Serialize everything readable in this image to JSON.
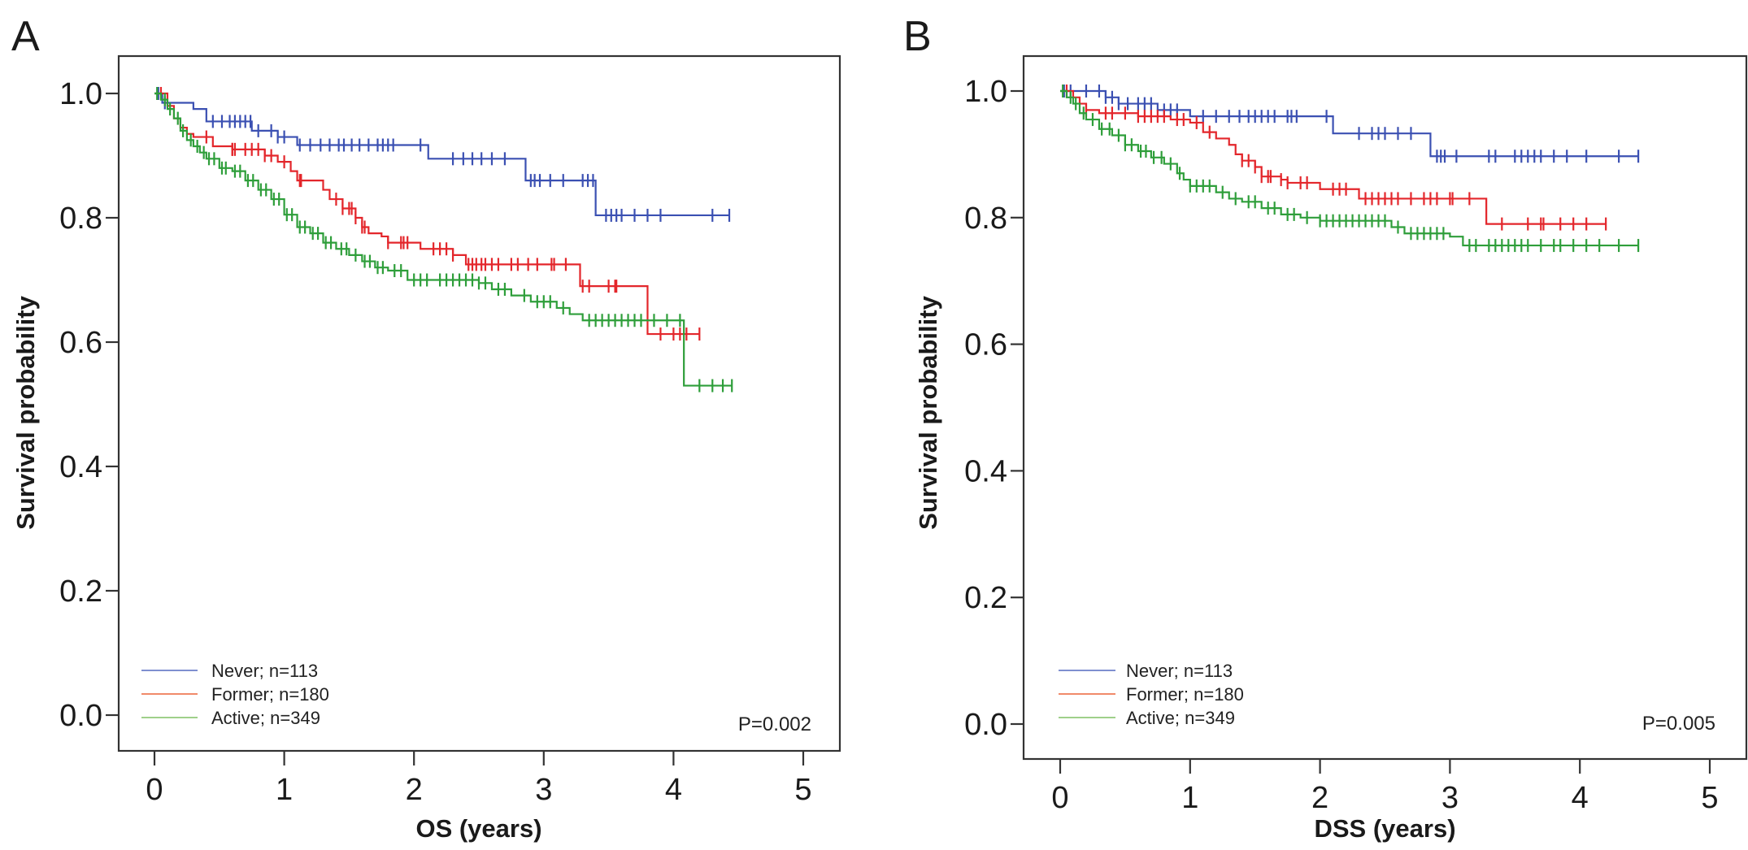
{
  "chart_data": [
    {
      "panel_label": "A",
      "type": "line",
      "subtype": "kaplan-meier",
      "xlabel": "OS (years)",
      "ylabel": "Survival probability",
      "xlim": [
        0,
        5
      ],
      "ylim": [
        0,
        1
      ],
      "xticks": [
        "0",
        "1",
        "2",
        "3",
        "4",
        "5"
      ],
      "yticks": [
        "0.0",
        "0.2",
        "0.4",
        "0.6",
        "0.8",
        "1.0"
      ],
      "p_value": "P=0.002",
      "legend_position": "bottom-left",
      "series": [
        {
          "name": "Never; n=113",
          "color": "#3b50b2",
          "legend_color": "#7f8fd0",
          "steps": [
            [
              0,
              1.0
            ],
            [
              0.06,
              0.985
            ],
            [
              0.3,
              0.975
            ],
            [
              0.4,
              0.955
            ],
            [
              0.75,
              0.94
            ],
            [
              0.95,
              0.93
            ],
            [
              1.1,
              0.917
            ],
            [
              2.11,
              0.895
            ],
            [
              2.86,
              0.86
            ],
            [
              3.4,
              0.804
            ]
          ],
          "end": 4.43,
          "censored": [
            0.03,
            0.08,
            0.45,
            0.52,
            0.58,
            0.62,
            0.66,
            0.7,
            0.74,
            0.8,
            0.9,
            0.95,
            1.0,
            1.12,
            1.2,
            1.28,
            1.35,
            1.42,
            1.46,
            1.52,
            1.58,
            1.65,
            1.72,
            1.76,
            1.8,
            1.84,
            2.05,
            2.3,
            2.38,
            2.45,
            2.52,
            2.6,
            2.7,
            2.9,
            2.93,
            2.97,
            3.05,
            3.15,
            3.3,
            3.34,
            3.38,
            3.48,
            3.52,
            3.56,
            3.6,
            3.7,
            3.8,
            3.9,
            4.3,
            4.43
          ]
        },
        {
          "name": "Former; n=180",
          "color": "#e3262b",
          "legend_color": "#f08a6a",
          "steps": [
            [
              0,
              1.0
            ],
            [
              0.1,
              0.98
            ],
            [
              0.15,
              0.96
            ],
            [
              0.2,
              0.945
            ],
            [
              0.25,
              0.935
            ],
            [
              0.3,
              0.93
            ],
            [
              0.45,
              0.915
            ],
            [
              0.6,
              0.91
            ],
            [
              0.85,
              0.9
            ],
            [
              0.95,
              0.89
            ],
            [
              1.05,
              0.875
            ],
            [
              1.1,
              0.86
            ],
            [
              1.3,
              0.845
            ],
            [
              1.35,
              0.83
            ],
            [
              1.45,
              0.815
            ],
            [
              1.55,
              0.8
            ],
            [
              1.6,
              0.785
            ],
            [
              1.65,
              0.775
            ],
            [
              1.75,
              0.77
            ],
            [
              1.8,
              0.76
            ],
            [
              2.05,
              0.75
            ],
            [
              2.3,
              0.74
            ],
            [
              2.4,
              0.725
            ],
            [
              3.28,
              0.69
            ],
            [
              3.8,
              0.613
            ]
          ],
          "end": 4.2,
          "censored": [
            0.05,
            0.4,
            0.6,
            0.6,
            0.62,
            0.7,
            0.75,
            0.8,
            0.85,
            0.9,
            1.0,
            1.12,
            1.13,
            1.4,
            1.45,
            1.5,
            1.52,
            1.55,
            1.6,
            1.62,
            1.8,
            1.9,
            1.92,
            1.95,
            2.15,
            2.2,
            2.25,
            2.3,
            2.42,
            2.45,
            2.48,
            2.52,
            2.55,
            2.6,
            2.65,
            2.75,
            2.8,
            2.88,
            2.95,
            3.06,
            3.08,
            3.17,
            3.3,
            3.35,
            3.5,
            3.55,
            3.56,
            3.9,
            4.0,
            4.05,
            4.1,
            4.2
          ]
        },
        {
          "name": "Active; n=349",
          "color": "#2e9e3a",
          "legend_color": "#9fd08a",
          "steps": [
            [
              0,
              1.0
            ],
            [
              0.05,
              0.99
            ],
            [
              0.1,
              0.975
            ],
            [
              0.15,
              0.96
            ],
            [
              0.2,
              0.94
            ],
            [
              0.25,
              0.925
            ],
            [
              0.3,
              0.915
            ],
            [
              0.35,
              0.905
            ],
            [
              0.4,
              0.895
            ],
            [
              0.5,
              0.88
            ],
            [
              0.6,
              0.875
            ],
            [
              0.7,
              0.86
            ],
            [
              0.8,
              0.845
            ],
            [
              0.9,
              0.83
            ],
            [
              1.0,
              0.805
            ],
            [
              1.1,
              0.785
            ],
            [
              1.2,
              0.775
            ],
            [
              1.3,
              0.76
            ],
            [
              1.4,
              0.75
            ],
            [
              1.5,
              0.74
            ],
            [
              1.6,
              0.73
            ],
            [
              1.7,
              0.72
            ],
            [
              1.8,
              0.715
            ],
            [
              1.95,
              0.7
            ],
            [
              2.5,
              0.695
            ],
            [
              2.6,
              0.685
            ],
            [
              2.75,
              0.675
            ],
            [
              2.9,
              0.665
            ],
            [
              3.1,
              0.655
            ],
            [
              3.2,
              0.645
            ],
            [
              3.3,
              0.635
            ],
            [
              4.08,
              0.53
            ]
          ],
          "end": 4.45,
          "censored": [
            0.02,
            0.08,
            0.12,
            0.18,
            0.22,
            0.28,
            0.33,
            0.38,
            0.42,
            0.46,
            0.52,
            0.55,
            0.62,
            0.66,
            0.72,
            0.76,
            0.82,
            0.86,
            0.92,
            0.96,
            1.02,
            1.06,
            1.12,
            1.16,
            1.22,
            1.26,
            1.32,
            1.36,
            1.44,
            1.48,
            1.55,
            1.62,
            1.66,
            1.72,
            1.76,
            1.85,
            1.9,
            2.0,
            2.05,
            2.1,
            2.2,
            2.25,
            2.3,
            2.35,
            2.4,
            2.45,
            2.5,
            2.55,
            2.65,
            2.7,
            2.85,
            2.95,
            3.0,
            3.05,
            3.15,
            3.35,
            3.4,
            3.45,
            3.5,
            3.55,
            3.6,
            3.65,
            3.7,
            3.75,
            3.85,
            3.95,
            4.05,
            4.2,
            4.3,
            4.38,
            4.45
          ]
        }
      ]
    },
    {
      "panel_label": "B",
      "type": "line",
      "subtype": "kaplan-meier",
      "xlabel": "DSS (years)",
      "ylabel": "Survival probability",
      "xlim": [
        0,
        5
      ],
      "ylim": [
        0,
        1
      ],
      "xticks": [
        "0",
        "1",
        "2",
        "3",
        "4",
        "5"
      ],
      "yticks": [
        "0.0",
        "0.2",
        "0.4",
        "0.6",
        "0.8",
        "1.0"
      ],
      "p_value": "P=0.005",
      "legend_position": "bottom-left",
      "series": [
        {
          "name": "Never; n=113",
          "color": "#3b50b2",
          "legend_color": "#7f8fd0",
          "steps": [
            [
              0,
              1.0
            ],
            [
              0.35,
              0.99
            ],
            [
              0.45,
              0.98
            ],
            [
              0.75,
              0.97
            ],
            [
              1.0,
              0.96
            ],
            [
              2.1,
              0.933
            ],
            [
              2.85,
              0.897
            ]
          ],
          "end": 4.45,
          "censored": [
            0.03,
            0.08,
            0.2,
            0.3,
            0.35,
            0.4,
            0.45,
            0.52,
            0.6,
            0.65,
            0.7,
            0.8,
            0.85,
            0.9,
            1.1,
            1.2,
            1.3,
            1.38,
            1.45,
            1.5,
            1.55,
            1.6,
            1.65,
            1.75,
            1.78,
            1.82,
            2.05,
            2.3,
            2.4,
            2.45,
            2.5,
            2.6,
            2.7,
            2.9,
            2.93,
            2.96,
            3.05,
            3.3,
            3.35,
            3.5,
            3.55,
            3.6,
            3.65,
            3.7,
            3.8,
            3.9,
            4.05,
            4.3,
            4.45
          ]
        },
        {
          "name": "Former; n=180",
          "color": "#e3262b",
          "legend_color": "#f08a6a",
          "steps": [
            [
              0,
              1.0
            ],
            [
              0.1,
              0.99
            ],
            [
              0.15,
              0.98
            ],
            [
              0.2,
              0.97
            ],
            [
              0.3,
              0.965
            ],
            [
              0.6,
              0.96
            ],
            [
              0.85,
              0.955
            ],
            [
              1.0,
              0.95
            ],
            [
              1.1,
              0.935
            ],
            [
              1.2,
              0.925
            ],
            [
              1.3,
              0.915
            ],
            [
              1.35,
              0.9
            ],
            [
              1.4,
              0.89
            ],
            [
              1.5,
              0.88
            ],
            [
              1.55,
              0.865
            ],
            [
              1.7,
              0.86
            ],
            [
              1.75,
              0.855
            ],
            [
              2.0,
              0.845
            ],
            [
              2.3,
              0.83
            ],
            [
              3.28,
              0.79
            ]
          ],
          "end": 4.2,
          "censored": [
            0.05,
            0.2,
            0.35,
            0.4,
            0.5,
            0.6,
            0.65,
            0.7,
            0.75,
            0.8,
            0.9,
            0.95,
            1.05,
            1.15,
            1.4,
            1.45,
            1.5,
            1.55,
            1.6,
            1.62,
            1.7,
            1.75,
            1.85,
            1.9,
            2.1,
            2.15,
            2.2,
            2.35,
            2.4,
            2.45,
            2.5,
            2.55,
            2.6,
            2.7,
            2.8,
            2.85,
            2.9,
            3.0,
            3.02,
            3.15,
            3.4,
            3.6,
            3.7,
            3.72,
            3.85,
            3.95,
            4.05,
            4.2
          ]
        },
        {
          "name": "Active; n=349",
          "color": "#2e9e3a",
          "legend_color": "#9fd08a",
          "steps": [
            [
              0,
              1.0
            ],
            [
              0.05,
              0.99
            ],
            [
              0.1,
              0.98
            ],
            [
              0.15,
              0.965
            ],
            [
              0.2,
              0.955
            ],
            [
              0.3,
              0.94
            ],
            [
              0.4,
              0.93
            ],
            [
              0.5,
              0.915
            ],
            [
              0.6,
              0.905
            ],
            [
              0.7,
              0.895
            ],
            [
              0.8,
              0.885
            ],
            [
              0.9,
              0.87
            ],
            [
              0.95,
              0.86
            ],
            [
              1.0,
              0.85
            ],
            [
              1.2,
              0.84
            ],
            [
              1.3,
              0.83
            ],
            [
              1.4,
              0.825
            ],
            [
              1.55,
              0.815
            ],
            [
              1.7,
              0.805
            ],
            [
              1.85,
              0.8
            ],
            [
              2.0,
              0.795
            ],
            [
              2.55,
              0.785
            ],
            [
              2.65,
              0.775
            ],
            [
              3.0,
              0.77
            ],
            [
              3.1,
              0.756
            ]
          ],
          "end": 4.45,
          "censored": [
            0.02,
            0.08,
            0.12,
            0.18,
            0.25,
            0.32,
            0.38,
            0.45,
            0.5,
            0.55,
            0.62,
            0.66,
            0.72,
            0.78,
            0.85,
            0.92,
            1.0,
            1.05,
            1.1,
            1.15,
            1.25,
            1.35,
            1.45,
            1.5,
            1.6,
            1.65,
            1.75,
            1.8,
            1.9,
            2.0,
            2.05,
            2.1,
            2.15,
            2.2,
            2.25,
            2.3,
            2.35,
            2.4,
            2.45,
            2.5,
            2.6,
            2.7,
            2.75,
            2.8,
            2.85,
            2.9,
            2.95,
            3.15,
            3.2,
            3.3,
            3.35,
            3.4,
            3.45,
            3.5,
            3.55,
            3.6,
            3.7,
            3.8,
            3.85,
            3.95,
            4.05,
            4.15,
            4.3,
            4.45
          ]
        }
      ]
    }
  ]
}
